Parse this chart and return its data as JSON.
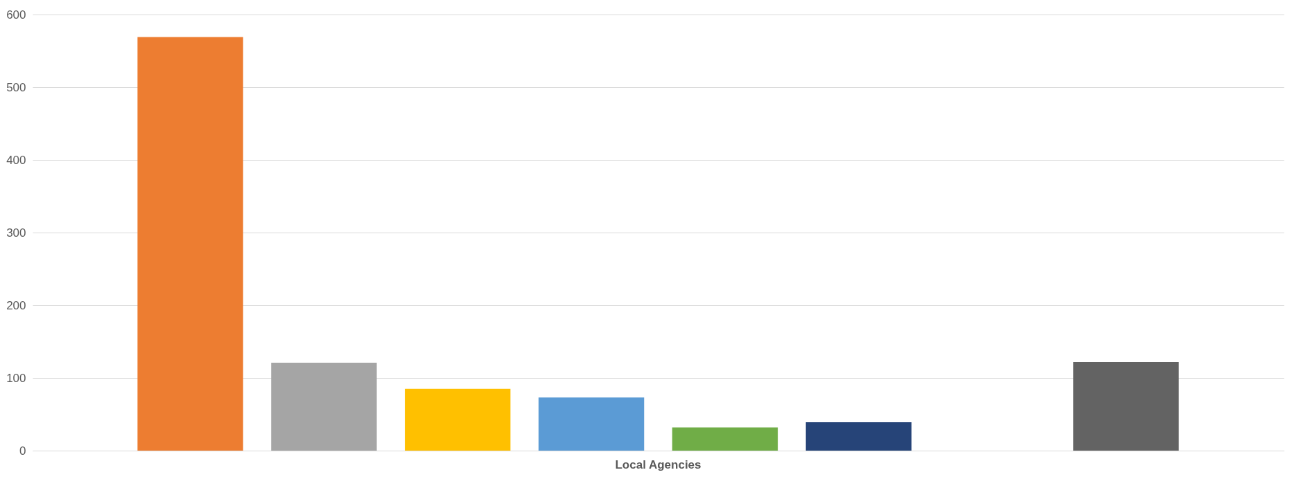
{
  "chart_data": {
    "type": "bar",
    "categories": [
      "Local Agencies"
    ],
    "ylim": [
      0,
      600
    ],
    "yticks": [
      0,
      100,
      200,
      300,
      400,
      500,
      600
    ],
    "grid": "y",
    "series": [
      {
        "color": "#ed7d31",
        "values": [
          569
        ]
      },
      {
        "color": "#a5a5a5",
        "values": [
          121
        ]
      },
      {
        "color": "#ffc000",
        "values": [
          85
        ]
      },
      {
        "color": "#5b9bd5",
        "values": [
          73
        ]
      },
      {
        "color": "#70ad47",
        "values": [
          32
        ]
      },
      {
        "color": "#264478",
        "values": [
          39
        ]
      },
      {
        "color": "#9e480e",
        "values": [
          null
        ]
      },
      {
        "color": "#636363",
        "values": [
          122
        ]
      }
    ]
  }
}
